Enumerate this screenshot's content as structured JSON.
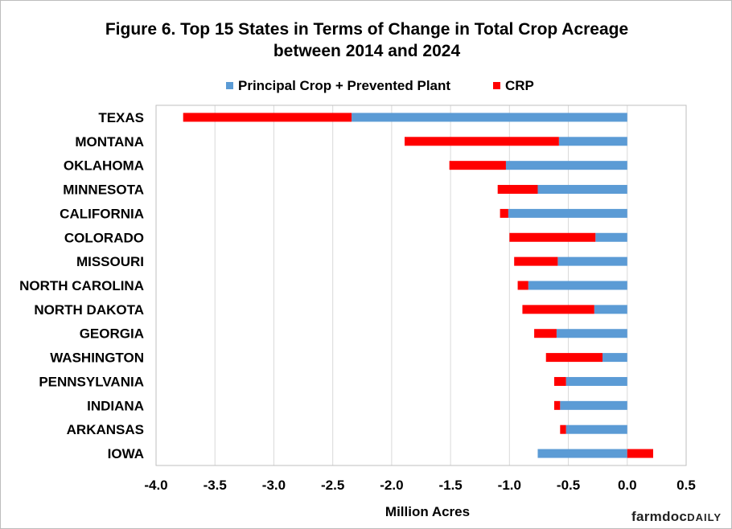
{
  "figure": {
    "title_line1": "Figure  6. Top 15 States in Terms of Change in Total Crop Acreage",
    "title_line2": "between 2014 and 2024",
    "brand_part1": "farmdoc",
    "brand_part2": "DAILY"
  },
  "chart_data": {
    "type": "bar",
    "orientation": "horizontal",
    "stacked": true,
    "title": "Figure  6. Top 15 States in Terms of Change in Total Crop Acreage between 2014 and 2024",
    "xlabel": "Million Acres",
    "ylabel": "",
    "xlim": [
      -4.0,
      0.5
    ],
    "x_ticks": [
      "-4.0",
      "-3.5",
      "-3.0",
      "-2.5",
      "-2.0",
      "-1.5",
      "-1.0",
      "-0.5",
      "0.0",
      "0.5"
    ],
    "grid": true,
    "legend_position": "top",
    "categories": [
      "TEXAS",
      "MONTANA",
      "OKLAHOMA",
      "MINNESOTA",
      "CALIFORNIA",
      "COLORADO",
      "MISSOURI",
      "NORTH CAROLINA",
      "NORTH DAKOTA",
      "GEORGIA",
      "WASHINGTON",
      "PENNSYLVANIA",
      "INDIANA",
      "ARKANSAS",
      "IOWA"
    ],
    "series": [
      {
        "name": "Principal Crop + Prevented Plant",
        "color": "#5b9bd5",
        "values": [
          -2.34,
          -0.58,
          -1.03,
          -0.76,
          -1.01,
          -0.27,
          -0.59,
          -0.84,
          -0.28,
          -0.6,
          -0.21,
          -0.52,
          -0.57,
          -0.52,
          -0.76
        ]
      },
      {
        "name": "CRP",
        "color": "#ff0000",
        "values": [
          -1.43,
          -1.31,
          -0.48,
          -0.34,
          -0.07,
          -0.73,
          -0.37,
          -0.09,
          -0.61,
          -0.19,
          -0.48,
          -0.1,
          -0.05,
          -0.05,
          0.22
        ]
      }
    ]
  }
}
